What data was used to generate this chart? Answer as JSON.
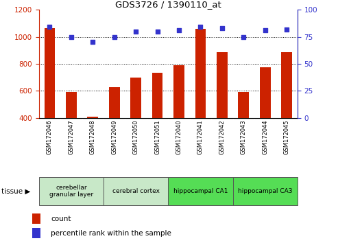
{
  "title": "GDS3726 / 1390110_at",
  "samples": [
    "GSM172046",
    "GSM172047",
    "GSM172048",
    "GSM172049",
    "GSM172050",
    "GSM172051",
    "GSM172040",
    "GSM172041",
    "GSM172042",
    "GSM172043",
    "GSM172044",
    "GSM172045"
  ],
  "counts": [
    1065,
    592,
    410,
    625,
    698,
    735,
    790,
    1060,
    885,
    592,
    775,
    885
  ],
  "percentiles": [
    84,
    75,
    70,
    75,
    80,
    80,
    81,
    84,
    83,
    75,
    81,
    82
  ],
  "left_ylim": [
    400,
    1200
  ],
  "left_yticks": [
    400,
    600,
    800,
    1000,
    1200
  ],
  "right_ylim": [
    0,
    100
  ],
  "right_yticks": [
    0,
    25,
    50,
    75,
    100
  ],
  "bar_color": "#cc2200",
  "dot_color": "#3333cc",
  "tissue_groups": [
    {
      "label": "cerebellar\ngranular layer",
      "start": 0,
      "end": 3,
      "color": "#c8e8c8"
    },
    {
      "label": "cerebral cortex",
      "start": 3,
      "end": 6,
      "color": "#c8e8c8"
    },
    {
      "label": "hippocampal CA1",
      "start": 6,
      "end": 9,
      "color": "#55dd55"
    },
    {
      "label": "hippocampal CA3",
      "start": 9,
      "end": 12,
      "color": "#55dd55"
    }
  ],
  "legend_count_label": "count",
  "legend_percentile_label": "percentile rank within the sample",
  "tissue_label": "tissue",
  "bar_color_left": "#cc2200",
  "tick_color_left": "#cc2200",
  "tick_color_right": "#3333cc",
  "bar_width": 0.5,
  "xtick_bg": "#d8d8d8"
}
